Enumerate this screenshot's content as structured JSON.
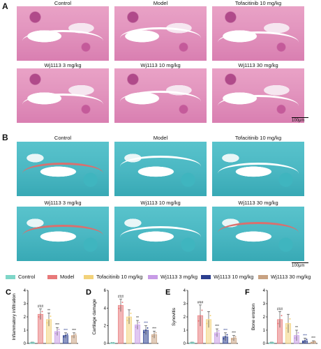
{
  "panels": {
    "A": {
      "letter": "A",
      "labels": [
        "Control",
        "Model",
        "Tofacitinib 10 mg/kg",
        "Wj1113 3 mg/kg",
        "Wj1113 10 mg/kg",
        "Wj1113 30 mg/kg"
      ],
      "scale": "100μm",
      "stain_color": "#e396bf"
    },
    "B": {
      "letter": "B",
      "labels": [
        "Control",
        "Model",
        "Tofacitinib 10 mg/kg",
        "Wj1113 3 mg/kg",
        "Wj1113 10 mg/kg",
        "Wj1113 30 mg/kg"
      ],
      "scale": "100μm",
      "stain_color": "#4bb8c3"
    }
  },
  "legend": [
    {
      "label": "Control",
      "color": "#7fd6c8"
    },
    {
      "label": "Model",
      "color": "#e8797a"
    },
    {
      "label": "Tofacitinib 10 mg/kg",
      "color": "#f2d27a"
    },
    {
      "label": "Wj1113 3 mg/kg",
      "color": "#c79be6"
    },
    {
      "label": "Wj1113 10 mg/kg",
      "color": "#2c3f8f"
    },
    {
      "label": "Wj1113 30 mg/kg",
      "color": "#c8a282"
    }
  ],
  "chart_data": [
    {
      "letter": "C",
      "type": "bar",
      "ylabel": "Inflammatory infiltration",
      "ylim": [
        0,
        4
      ],
      "yticks": [
        "0",
        "1",
        "2",
        "3",
        "4"
      ],
      "values": [
        0.05,
        2.2,
        1.8,
        0.9,
        0.6,
        0.6
      ],
      "errors": [
        0.05,
        0.4,
        0.5,
        0.3,
        0.2,
        0.2
      ],
      "annotations": [
        "",
        "###",
        "**",
        "***",
        "***",
        "***"
      ]
    },
    {
      "letter": "D",
      "type": "bar",
      "ylabel": "Cartilage damage",
      "ylim": [
        0,
        6
      ],
      "yticks": [
        "0",
        "2",
        "4",
        "6"
      ],
      "values": [
        0.05,
        4.3,
        3.0,
        2.1,
        1.5,
        1.0
      ],
      "errors": [
        0.05,
        0.7,
        0.8,
        0.5,
        0.5,
        0.4
      ],
      "annotations": [
        "",
        "###",
        "",
        "**",
        "***",
        "***"
      ]
    },
    {
      "letter": "E",
      "type": "bar",
      "ylabel": "Synovitis",
      "ylim": [
        0,
        4
      ],
      "yticks": [
        "0",
        "1",
        "2",
        "3",
        "4"
      ],
      "values": [
        0.05,
        2.1,
        1.8,
        0.8,
        0.5,
        0.4
      ],
      "errors": [
        0.05,
        0.8,
        0.6,
        0.3,
        0.3,
        0.2
      ],
      "annotations": [
        "",
        "###",
        "",
        "***",
        "***",
        "***"
      ]
    },
    {
      "letter": "F",
      "type": "bar",
      "ylabel": "Bone erosion",
      "ylim": [
        0,
        4
      ],
      "yticks": [
        "0",
        "1",
        "2",
        "3",
        "4"
      ],
      "values": [
        0.05,
        1.8,
        1.5,
        0.6,
        0.2,
        0.1
      ],
      "errors": [
        0.05,
        0.6,
        0.7,
        0.4,
        0.2,
        0.1
      ],
      "annotations": [
        "",
        "###",
        "",
        "**",
        "***",
        "***"
      ]
    }
  ]
}
